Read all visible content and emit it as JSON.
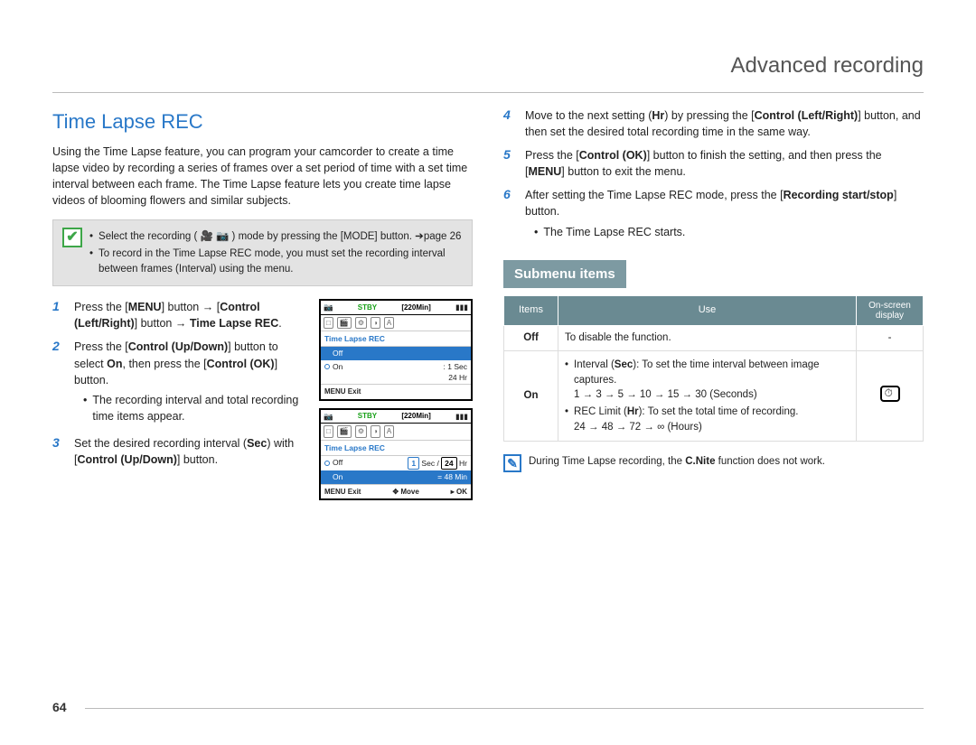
{
  "chapter_title": "Advanced recording",
  "section_title": "Time Lapse REC",
  "intro": "Using the Time Lapse feature, you can program your camcorder to create a time lapse video by recording a series of frames over a set period of time with a set time interval between each frame. The Time Lapse feature lets you create time lapse videos of blooming flowers and similar subjects.",
  "note_box": [
    "Select the recording ( 🎥 📷 ) mode by pressing the [MODE] button. ➔page 26",
    "To record in the Time Lapse REC mode, you must set the recording interval between frames (Interval) using the menu."
  ],
  "steps_left": [
    {
      "num": "1",
      "html": "Press the [<b>MENU</b>] button → [<b>Control (Left/Right)</b>] button → <b>Time Lapse REC</b>."
    },
    {
      "num": "2",
      "html": "Press the [<b>Control (Up/Down)</b>] button to select <b>On</b>, then press the [<b>Control (OK)</b>] button.",
      "subs": [
        "The recording interval and total recording time items appear."
      ]
    },
    {
      "num": "3",
      "html": "Set the desired recording interval (<b>Sec</b>) with [<b>Control (Up/Down)</b>] button."
    }
  ],
  "steps_right": [
    {
      "num": "4",
      "html": "Move to the next setting (<b>Hr</b>) by pressing the [<b>Control (Left/Right)</b>] button, and then set the desired total recording time in the same way."
    },
    {
      "num": "5",
      "html": "Press the [<b>Control (OK)</b>] button to finish the setting, and then press the [<b>MENU</b>] button to exit the menu."
    },
    {
      "num": "6",
      "html": "After setting the Time Lapse REC mode, press the [<b>Recording start/stop</b>] button.",
      "subs": [
        "The Time Lapse REC starts."
      ]
    }
  ],
  "shot1": {
    "stby": "STBY",
    "time": "[220Min]",
    "title": "Time Lapse REC",
    "off": "Off",
    "on": "On",
    "val1": ": 1 Sec",
    "val2": "24 Hr",
    "foot_l": "MENU Exit"
  },
  "shot2": {
    "stby": "STBY",
    "time": "[220Min]",
    "title": "Time Lapse REC",
    "off": "Off",
    "on": "On",
    "sec": "Sec",
    "hr": "Hr",
    "secv": "1",
    "hrv": "24",
    "calc": "= 48 Min",
    "foot_l": "MENU Exit",
    "foot_m": "Move",
    "foot_r": "OK"
  },
  "submenu_label": "Submenu items",
  "submenu_headers": [
    "Items",
    "Use",
    "On-screen display"
  ],
  "submenu_rows": {
    "off": {
      "item": "Off",
      "use": "To disable the function.",
      "osd": "-"
    },
    "on": {
      "item": "On",
      "uses": [
        "Interval (<b>Sec</b>): To set the time interval between image captures.<br>1 → 3 → 5 → 10 → 15 → 30 (Seconds)",
        "REC Limit (<b>Hr</b>): To set the total time of recording.<br>24 → 48 → 72 → ∞ (Hours)"
      ]
    }
  },
  "footnote_html": "During Time Lapse recording, the <b>C.Nite</b> function does not work.",
  "page_num": "64",
  "colors": {
    "accent": "#2978c8",
    "badge": "#7d9aa2",
    "thead": "#6a8a92"
  }
}
